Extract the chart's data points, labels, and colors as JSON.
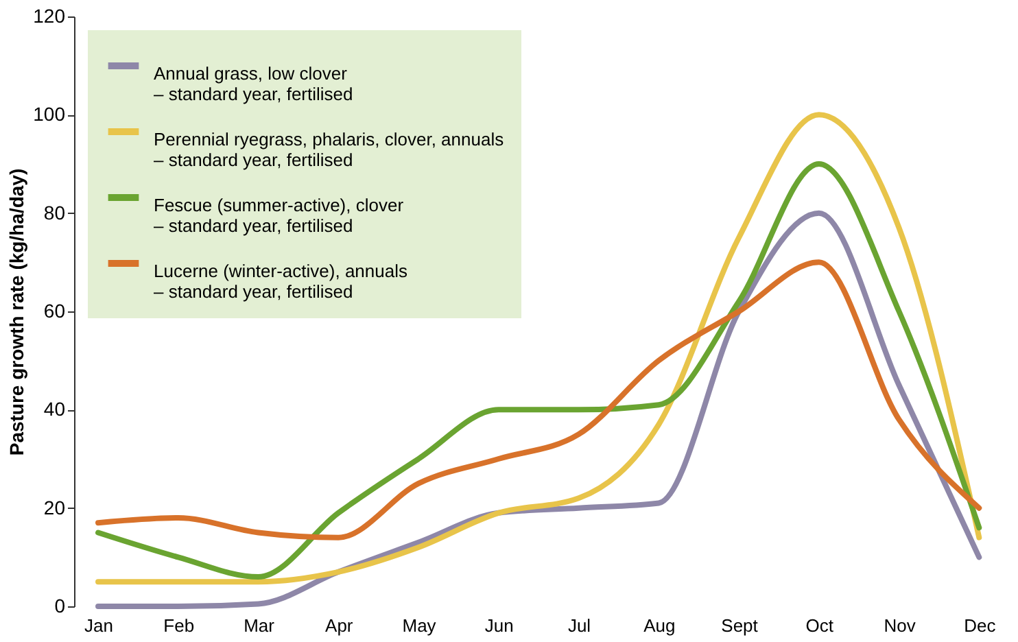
{
  "chart_data": {
    "type": "line",
    "ylabel": "Pasture growth rate (kg/ha/day)",
    "categories": [
      "Jan",
      "Feb",
      "Mar",
      "Apr",
      "May",
      "Jun",
      "Jul",
      "Aug",
      "Sept",
      "Oct",
      "Nov",
      "Dec"
    ],
    "series": [
      {
        "name": "Annual grass, low clover\n– standard year, fertilised",
        "color": "#8e87a8",
        "values": [
          0,
          0,
          0.5,
          7,
          13,
          19,
          20,
          21,
          60,
          80,
          45,
          10
        ]
      },
      {
        "name": "Perennial ryegrass, phalaris, clover, annuals\n– standard year, fertilised",
        "color": "#e8c44a",
        "values": [
          5,
          5,
          5,
          7,
          12,
          19,
          22,
          37,
          75,
          100,
          77,
          14
        ]
      },
      {
        "name": "Fescue (summer-active), clover\n– standard year, fertilised",
        "color": "#6aa431",
        "values": [
          15,
          10,
          6,
          19,
          30,
          40,
          40,
          41,
          62,
          90,
          60,
          16
        ]
      },
      {
        "name": "Lucerne (winter-active), annuals\n– standard year, fertilised",
        "color": "#d8722a",
        "values": [
          17,
          18,
          15,
          14,
          25,
          30,
          35,
          50,
          60,
          70,
          38,
          20
        ]
      }
    ],
    "ylim": [
      0,
      120
    ],
    "yticks": [
      0,
      20,
      40,
      60,
      80,
      100,
      120
    ],
    "grid": false,
    "legend": "top left",
    "marker": "none",
    "line_style": "solid"
  }
}
